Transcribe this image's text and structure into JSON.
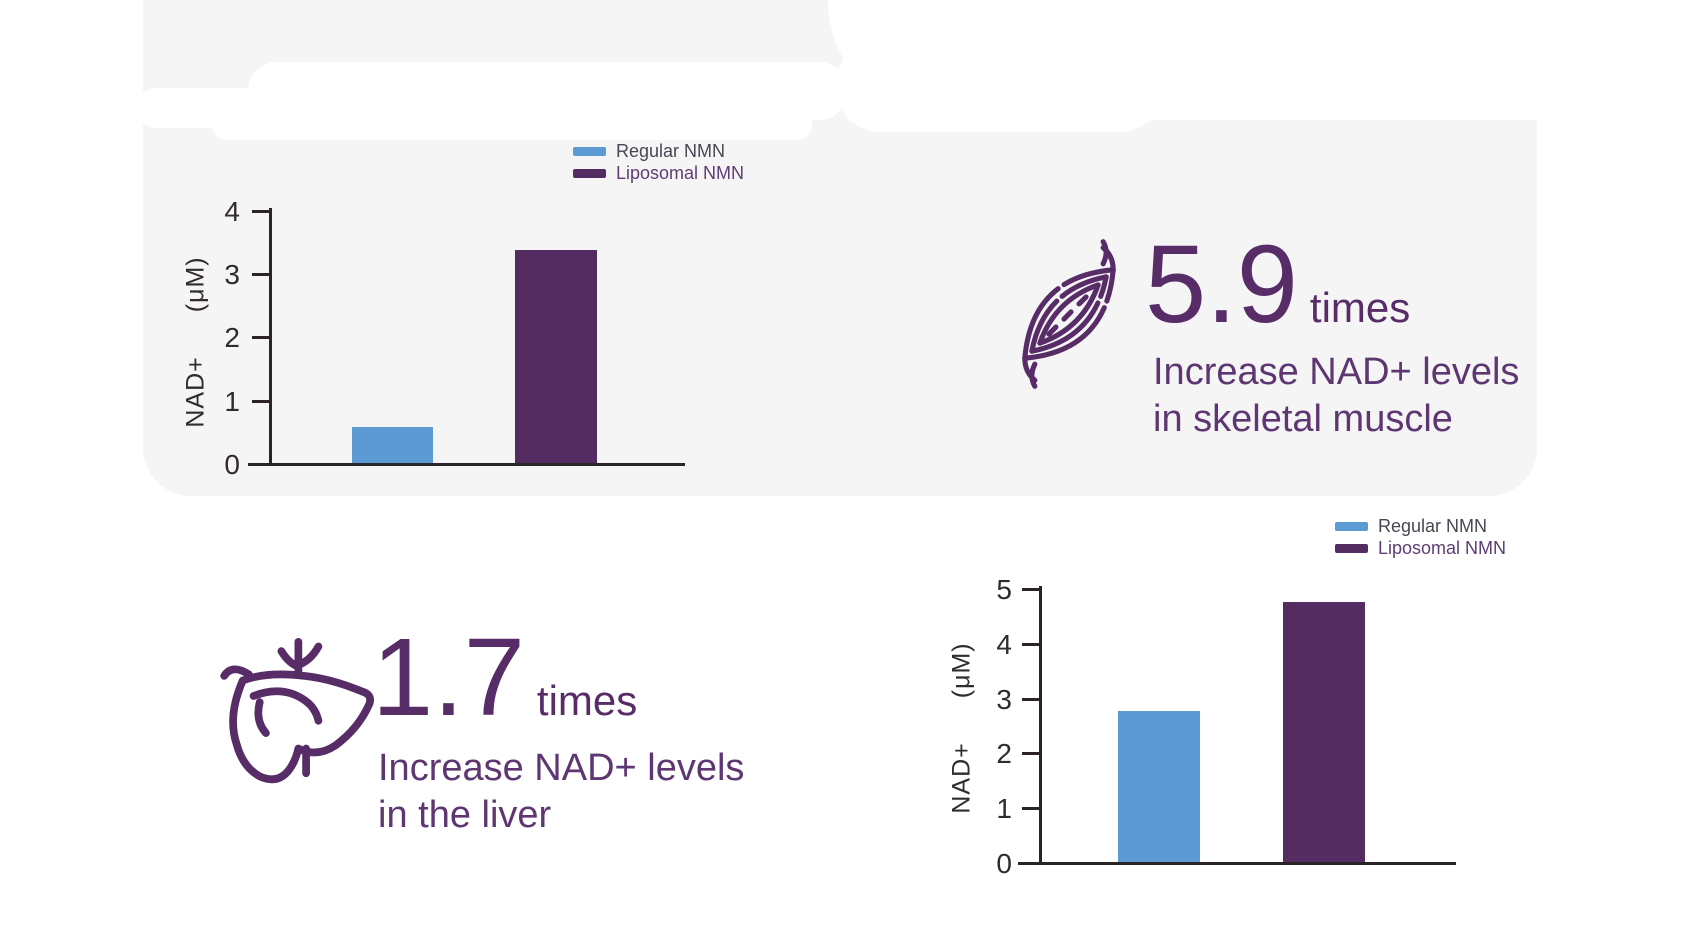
{
  "colors": {
    "background": "#ffffff",
    "panel": "#f5f5f6",
    "regular_nmn_blue": "#5b9ad3",
    "liposomal_nmn_purple": "#542c62",
    "accent_purple": "#572c67",
    "accent_body_purple": "#5e3672",
    "axis": "#2b2426",
    "tick_text": "#322b2e"
  },
  "legend": {
    "items": [
      {
        "label": "Regular NMN",
        "color": "#5b9ad3",
        "label_color": "#4b4553"
      },
      {
        "label": "Liposomal NMN",
        "color": "#542c62",
        "label_color": "#5e3d73"
      }
    ]
  },
  "chart_data": [
    {
      "type": "bar",
      "title": "",
      "context": "NAD+ increase in skeletal muscle",
      "categories": [
        "Regular NMN",
        "Liposomal NMN"
      ],
      "values": [
        0.57,
        3.37
      ],
      "bar_colors": [
        "#5b9ad3",
        "#542c62"
      ],
      "xlabel": "",
      "ylabel": "NAD+ (μM)",
      "ylabel_main": "NAD+",
      "ylabel_unit": "(μM)",
      "ylim": [
        0,
        4
      ],
      "yticks": [
        0,
        1,
        2,
        3,
        4
      ],
      "grid": false,
      "legend_entries": [
        "Regular NMN",
        "Liposomal NMN"
      ],
      "legend_position": "top-right"
    },
    {
      "type": "bar",
      "title": "",
      "context": "NAD+ increase in the liver",
      "categories": [
        "Regular NMN",
        "Liposomal NMN"
      ],
      "values": [
        2.75,
        4.75
      ],
      "bar_colors": [
        "#5b9ad3",
        "#542c62"
      ],
      "xlabel": "",
      "ylabel": "NAD+ (μM)",
      "ylabel_main": "NAD+",
      "ylabel_unit": "(μM)",
      "ylim": [
        0,
        5
      ],
      "yticks": [
        0,
        1,
        2,
        3,
        4,
        5
      ],
      "grid": false,
      "legend_entries": [
        "Regular NMN",
        "Liposomal NMN"
      ],
      "legend_position": "top-right"
    }
  ],
  "callouts": {
    "muscle": {
      "icon": "muscle-icon",
      "number": "5.9",
      "unit": "times",
      "line1": "Increase NAD+ levels",
      "line2": "in skeletal muscle"
    },
    "liver": {
      "icon": "liver-icon",
      "number": "1.7",
      "unit": "times",
      "line1": "Increase NAD+ levels",
      "line2": "in the liver"
    }
  }
}
